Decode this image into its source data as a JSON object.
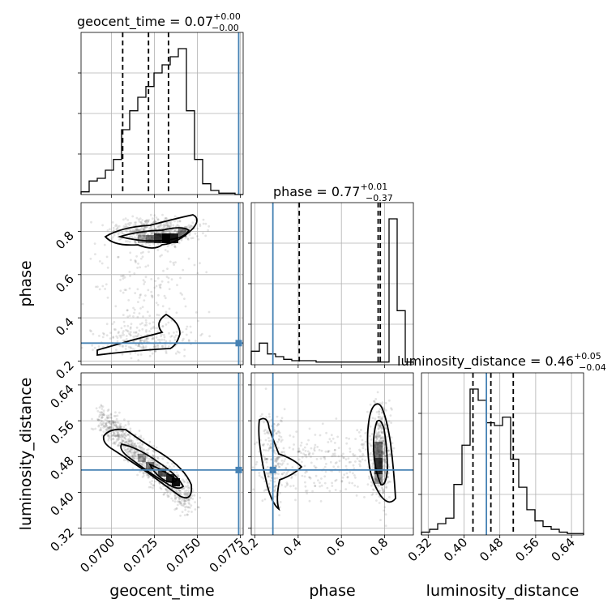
{
  "accent_truth_color": "#4682b4",
  "titles": {
    "geocent_time": {
      "prefix": "geocent_time = 0.07",
      "sup": "+0.00",
      "sub": "−0.00"
    },
    "phase": {
      "prefix": "phase = 0.77",
      "sup": "+0.01",
      "sub": "−0.37"
    },
    "luminosity_distance": {
      "prefix": "luminosity_distance = 0.46",
      "sup": "+0.05",
      "sub": "−0.04"
    }
  },
  "axis_labels": {
    "x_geocent_time": "geocent_time",
    "x_phase": "phase",
    "x_luminosity_distance": "luminosity_distance",
    "y_phase": "phase",
    "y_luminosity_distance": "luminosity_distance"
  },
  "ticks": {
    "geocent_time": [
      "0.0700",
      "0.0725",
      "0.0750",
      "0.0775"
    ],
    "phase": [
      "0.2",
      "0.4",
      "0.6",
      "0.8"
    ],
    "luminosity_distance": [
      "0.32",
      "0.40",
      "0.48",
      "0.56",
      "0.64"
    ]
  },
  "chart_data": {
    "type": "corner",
    "parameters": [
      "geocent_time",
      "phase",
      "luminosity_distance"
    ],
    "ranges": {
      "geocent_time": [
        0.06824,
        0.07766
      ],
      "phase": [
        0.183,
        0.933
      ],
      "luminosity_distance": [
        0.305,
        0.667
      ]
    },
    "truths": {
      "geocent_time": 0.0774,
      "phase": 0.283,
      "luminosity_distance": 0.45
    },
    "quantiles": {
      "geocent_time": [
        0.07066,
        0.07216,
        0.07332
      ],
      "phase": [
        0.405,
        0.77,
        0.78
      ],
      "luminosity_distance": [
        0.42,
        0.46,
        0.51
      ]
    },
    "histograms": {
      "geocent_time": {
        "bin_width": 0.000471,
        "counts": [
          2,
          10,
          12,
          18,
          26,
          48,
          62,
          72,
          80,
          90,
          96,
          102,
          108,
          62,
          26,
          8,
          3,
          1,
          1,
          0
        ]
      },
      "phase": {
        "bin_width": 0.0375,
        "counts": [
          10,
          16,
          8,
          6,
          4,
          3,
          3,
          3,
          2,
          2,
          2,
          2,
          2,
          2,
          2,
          2,
          2,
          108,
          40,
          2
        ]
      },
      "luminosity_distance": {
        "bin_width": 0.0181,
        "counts": [
          2,
          4,
          8,
          12,
          36,
          64,
          104,
          96,
          80,
          78,
          84,
          54,
          34,
          18,
          10,
          6,
          4,
          2,
          1,
          1
        ]
      }
    },
    "grid": true
  }
}
